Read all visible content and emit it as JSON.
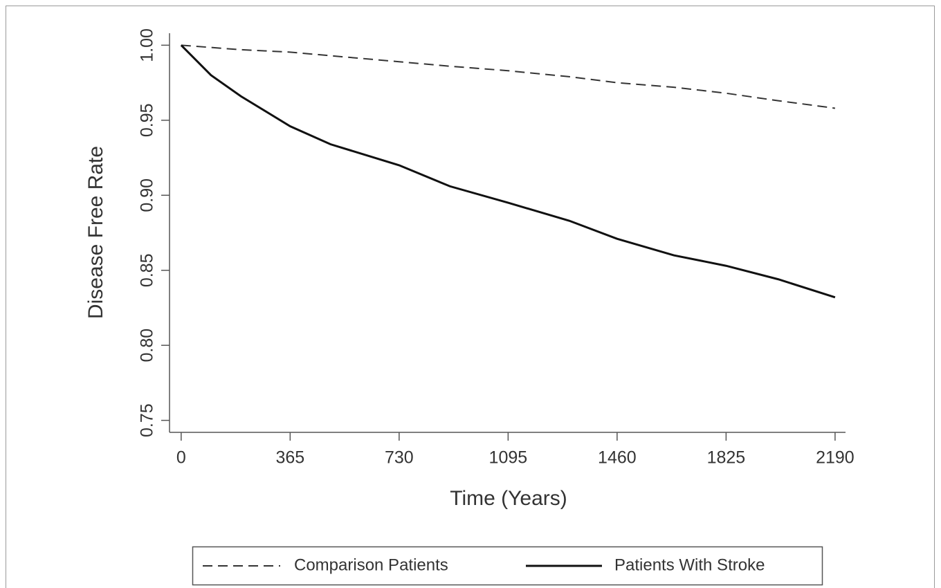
{
  "chart_data": {
    "type": "line",
    "x_label": "Time (Years)",
    "y_label": "Disease Free Rate",
    "x": [
      0,
      100,
      200,
      365,
      500,
      730,
      900,
      1095,
      1300,
      1460,
      1650,
      1825,
      2000,
      2190
    ],
    "series": [
      {
        "name": "Comparison Patients",
        "color": "#333333",
        "style": "dashed",
        "values": [
          1.0,
          0.9985,
          0.997,
          0.9954,
          0.993,
          0.989,
          0.986,
          0.983,
          0.979,
          0.975,
          0.972,
          0.968,
          0.963,
          0.958
        ]
      },
      {
        "name": "Patients With Stroke",
        "color": "#111111",
        "style": "solid",
        "values": [
          1.0,
          0.98,
          0.966,
          0.946,
          0.934,
          0.92,
          0.906,
          0.895,
          0.883,
          0.871,
          0.86,
          0.853,
          0.844,
          0.832
        ]
      }
    ],
    "xlim": [
      -39,
      2225
    ],
    "ylim": [
      0.742,
      1.008
    ],
    "xticks": [
      0,
      365,
      730,
      1095,
      1460,
      1825,
      2190
    ],
    "yticks": [
      {
        "value": 0.75,
        "label": "0.75"
      },
      {
        "value": 0.8,
        "label": "0.80"
      },
      0.85,
      {
        "value": 0.9,
        "label": "0.90"
      },
      0.95,
      {
        "value": 1.0,
        "label": "1.00"
      }
    ],
    "grid": false,
    "legend": "bottom"
  }
}
